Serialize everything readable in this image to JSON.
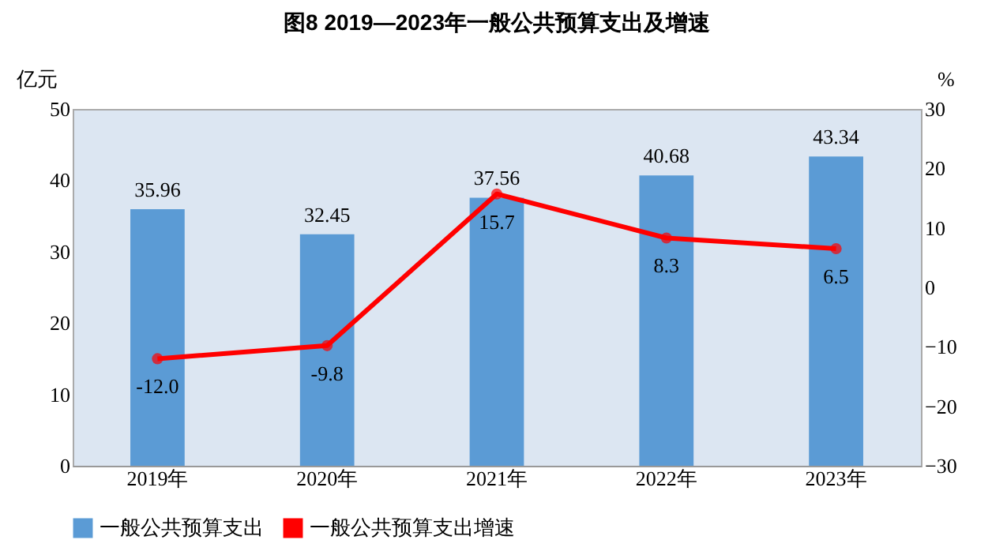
{
  "chart_data": {
    "type": "bar",
    "title": "图8  2019—2023年一般公共预算支出及增速",
    "categories": [
      "2019年",
      "2020年",
      "2021年",
      "2022年",
      "2023年"
    ],
    "ylabel": "亿元",
    "y2label": "%",
    "ylim": [
      0,
      50
    ],
    "yticks": [
      0,
      10,
      20,
      30,
      40,
      50
    ],
    "y2lim": [
      -30,
      30
    ],
    "y2ticks": [
      -30,
      -20,
      -10,
      0,
      10,
      20,
      30
    ],
    "series": [
      {
        "name": "一般公共预算支出",
        "type": "bar",
        "color": "#5b9bd5",
        "values": [
          35.96,
          32.45,
          37.56,
          40.68,
          43.34
        ],
        "value_labels": [
          "35.96",
          "32.45",
          "37.56",
          "40.68",
          "43.34"
        ]
      },
      {
        "name": "一般公共预算支出增速",
        "type": "line",
        "axis": "y2",
        "color": "#ff0000",
        "values": [
          -12.0,
          -9.8,
          15.7,
          8.3,
          6.5
        ],
        "value_labels": [
          "-12.0",
          "-9.8",
          "15.7",
          "8.3",
          "6.5"
        ]
      }
    ],
    "marker": "circle",
    "legend": "bottom",
    "grid": false
  }
}
